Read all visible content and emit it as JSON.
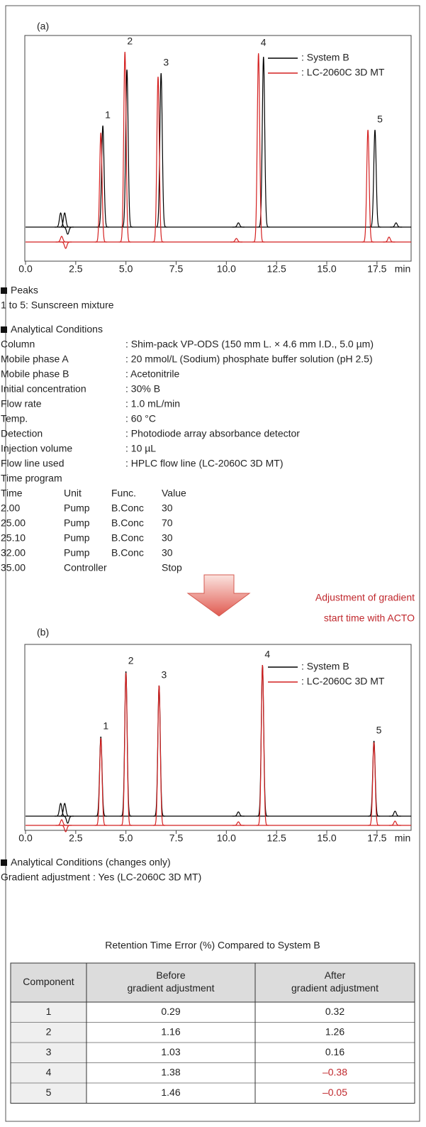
{
  "chart_data": [
    {
      "type": "chromatogram",
      "panel_label": "(a)",
      "x_label": "min",
      "xlim": [
        0,
        19.2
      ],
      "xticks": [
        {
          "value": 0,
          "label": "0.0"
        },
        {
          "value": 2.5,
          "label": "2.5"
        },
        {
          "value": 5,
          "label": "5.0"
        },
        {
          "value": 7.5,
          "label": "7.5"
        },
        {
          "value": 10,
          "label": "10.0"
        },
        {
          "value": 12.5,
          "label": "12.5"
        },
        {
          "value": 15,
          "label": "15.0"
        },
        {
          "value": 17.5,
          "label": "17.5"
        }
      ],
      "peak_labels": [
        "1",
        "2",
        "3",
        "4",
        "5"
      ],
      "series": [
        {
          "name": ": System B",
          "color": "#000000",
          "peak_times": [
            3.85,
            5.05,
            6.75,
            11.85,
            17.4,
            10.6,
            18.45,
            1.75,
            1.95,
            2.1
          ],
          "peak_heights": [
            143,
            222,
            217,
            240,
            137,
            6,
            6,
            20,
            20,
            -10
          ]
        },
        {
          "name": ": LC-2060C 3D MT",
          "color": "#d42020",
          "peak_times": [
            3.75,
            4.95,
            6.6,
            11.6,
            17.05,
            10.5,
            18.1,
            1.8,
            2.0
          ],
          "peak_heights": [
            154,
            268,
            233,
            266,
            158,
            5,
            7,
            8,
            -9
          ]
        }
      ]
    },
    {
      "type": "chromatogram",
      "panel_label": "(b)",
      "x_label": "min",
      "xlim": [
        0,
        19.2
      ],
      "xticks": [
        {
          "value": 0,
          "label": "0.0"
        },
        {
          "value": 2.5,
          "label": "2.5"
        },
        {
          "value": 5,
          "label": "5.0"
        },
        {
          "value": 7.5,
          "label": "7.5"
        },
        {
          "value": 10,
          "label": "10.0"
        },
        {
          "value": 12.5,
          "label": "12.5"
        },
        {
          "value": 15,
          "label": "15.0"
        },
        {
          "value": 17.5,
          "label": "17.5"
        }
      ],
      "peak_labels": [
        "1",
        "2",
        "3",
        "4",
        "5"
      ],
      "series": [
        {
          "name": ": System B",
          "color": "#000000",
          "peak_times": [
            3.75,
            5.0,
            6.65,
            11.8,
            17.35,
            10.6,
            18.4,
            1.75,
            1.95,
            2.1
          ],
          "peak_heights": [
            112,
            204,
            184,
            213,
            106,
            6,
            7,
            18,
            18,
            -10
          ]
        },
        {
          "name": ": LC-2060C 3D MT",
          "color": "#d42020",
          "peak_times": [
            3.75,
            5.0,
            6.65,
            11.8,
            17.35,
            10.6,
            18.4,
            1.8,
            2.0
          ],
          "peak_heights": [
            123,
            215,
            197,
            226,
            117,
            5,
            6,
            8,
            -9
          ]
        }
      ]
    }
  ],
  "peaks_section": {
    "title": "Peaks",
    "text": "1 to 5: Sunscreen mixture"
  },
  "conditions": {
    "title": "Analytical Conditions",
    "rows": [
      [
        "Column",
        ": Shim-pack VP-ODS (150 mm L. × 4.6 mm I.D., 5.0 µm)"
      ],
      [
        "Mobile phase A",
        ": 20 mmol/L (Sodium) phosphate buffer solution (pH 2.5)"
      ],
      [
        "Mobile phase B",
        ": Acetonitrile"
      ],
      [
        "Initial concentration",
        ": 30% B"
      ],
      [
        "Flow rate",
        ": 1.0 mL/min"
      ],
      [
        "Temp.",
        ": 60 °C"
      ],
      [
        "Detection",
        ": Photodiode array absorbance detector"
      ],
      [
        "Injection volume",
        ": 10 µL"
      ],
      [
        "Flow line used",
        ": HPLC flow line (LC-2060C 3D MT)"
      ]
    ],
    "time_program": {
      "title": "Time program",
      "header": [
        "Time",
        "Unit",
        "Func.",
        "Value"
      ],
      "rows": [
        [
          "2.00",
          "Pump",
          "B.Conc",
          "30"
        ],
        [
          "25.00",
          "Pump",
          "B.Conc",
          "70"
        ],
        [
          "25.10",
          "Pump",
          "B.Conc",
          "30"
        ],
        [
          "32.00",
          "Pump",
          "B.Conc",
          "30"
        ],
        [
          "35.00",
          "Controller",
          "Stop"
        ]
      ]
    }
  },
  "arrow_text": [
    "Adjustment of gradient",
    "start time with ACTO"
  ],
  "changes": {
    "title": "Analytical Conditions (changes only)",
    "text": "Gradient adjustment : Yes (LC-2060C 3D MT)"
  },
  "table": {
    "title": "Retention Time Error (%) Compared to System B",
    "header": [
      [
        "Component"
      ],
      [
        "Before",
        "gradient adjustment"
      ],
      [
        "After",
        "gradient adjustment"
      ]
    ],
    "rows": [
      [
        "1",
        "0.29",
        "0.32"
      ],
      [
        "2",
        "1.16",
        "1.26"
      ],
      [
        "3",
        "1.03",
        "0.16"
      ],
      [
        "4",
        "1.38",
        "–0.38"
      ],
      [
        "5",
        "1.46",
        "–0.05"
      ]
    ]
  }
}
